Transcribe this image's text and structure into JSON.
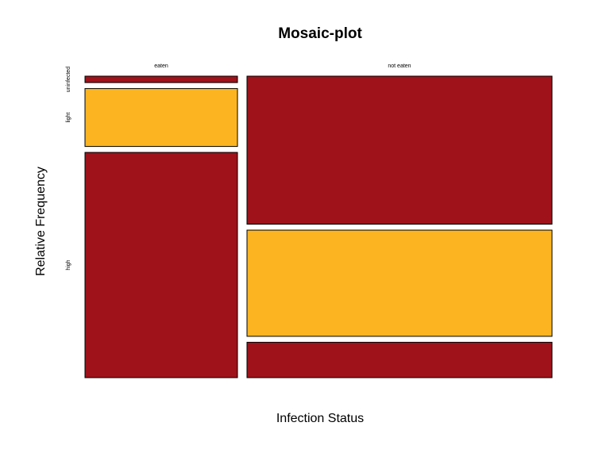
{
  "chart_data": {
    "type": "mosaic",
    "title": "Mosaic-plot",
    "xlabel": "Infection Status",
    "ylabel": "Relative Frequency",
    "categories": [
      "eaten",
      "not eaten"
    ],
    "category_proportions": [
      0.3333,
      0.6667
    ],
    "series": [
      {
        "name": "uninfected",
        "values": [
          0.0222,
          0.5111
        ]
      },
      {
        "name": "light",
        "values": [
          0.2,
          0.3667
        ]
      },
      {
        "name": "high",
        "values": [
          0.7778,
          0.1222
        ]
      }
    ],
    "colors": [
      "#a0121a",
      "#fcb520",
      "#a0121a"
    ],
    "legend": "none",
    "grid": false
  }
}
